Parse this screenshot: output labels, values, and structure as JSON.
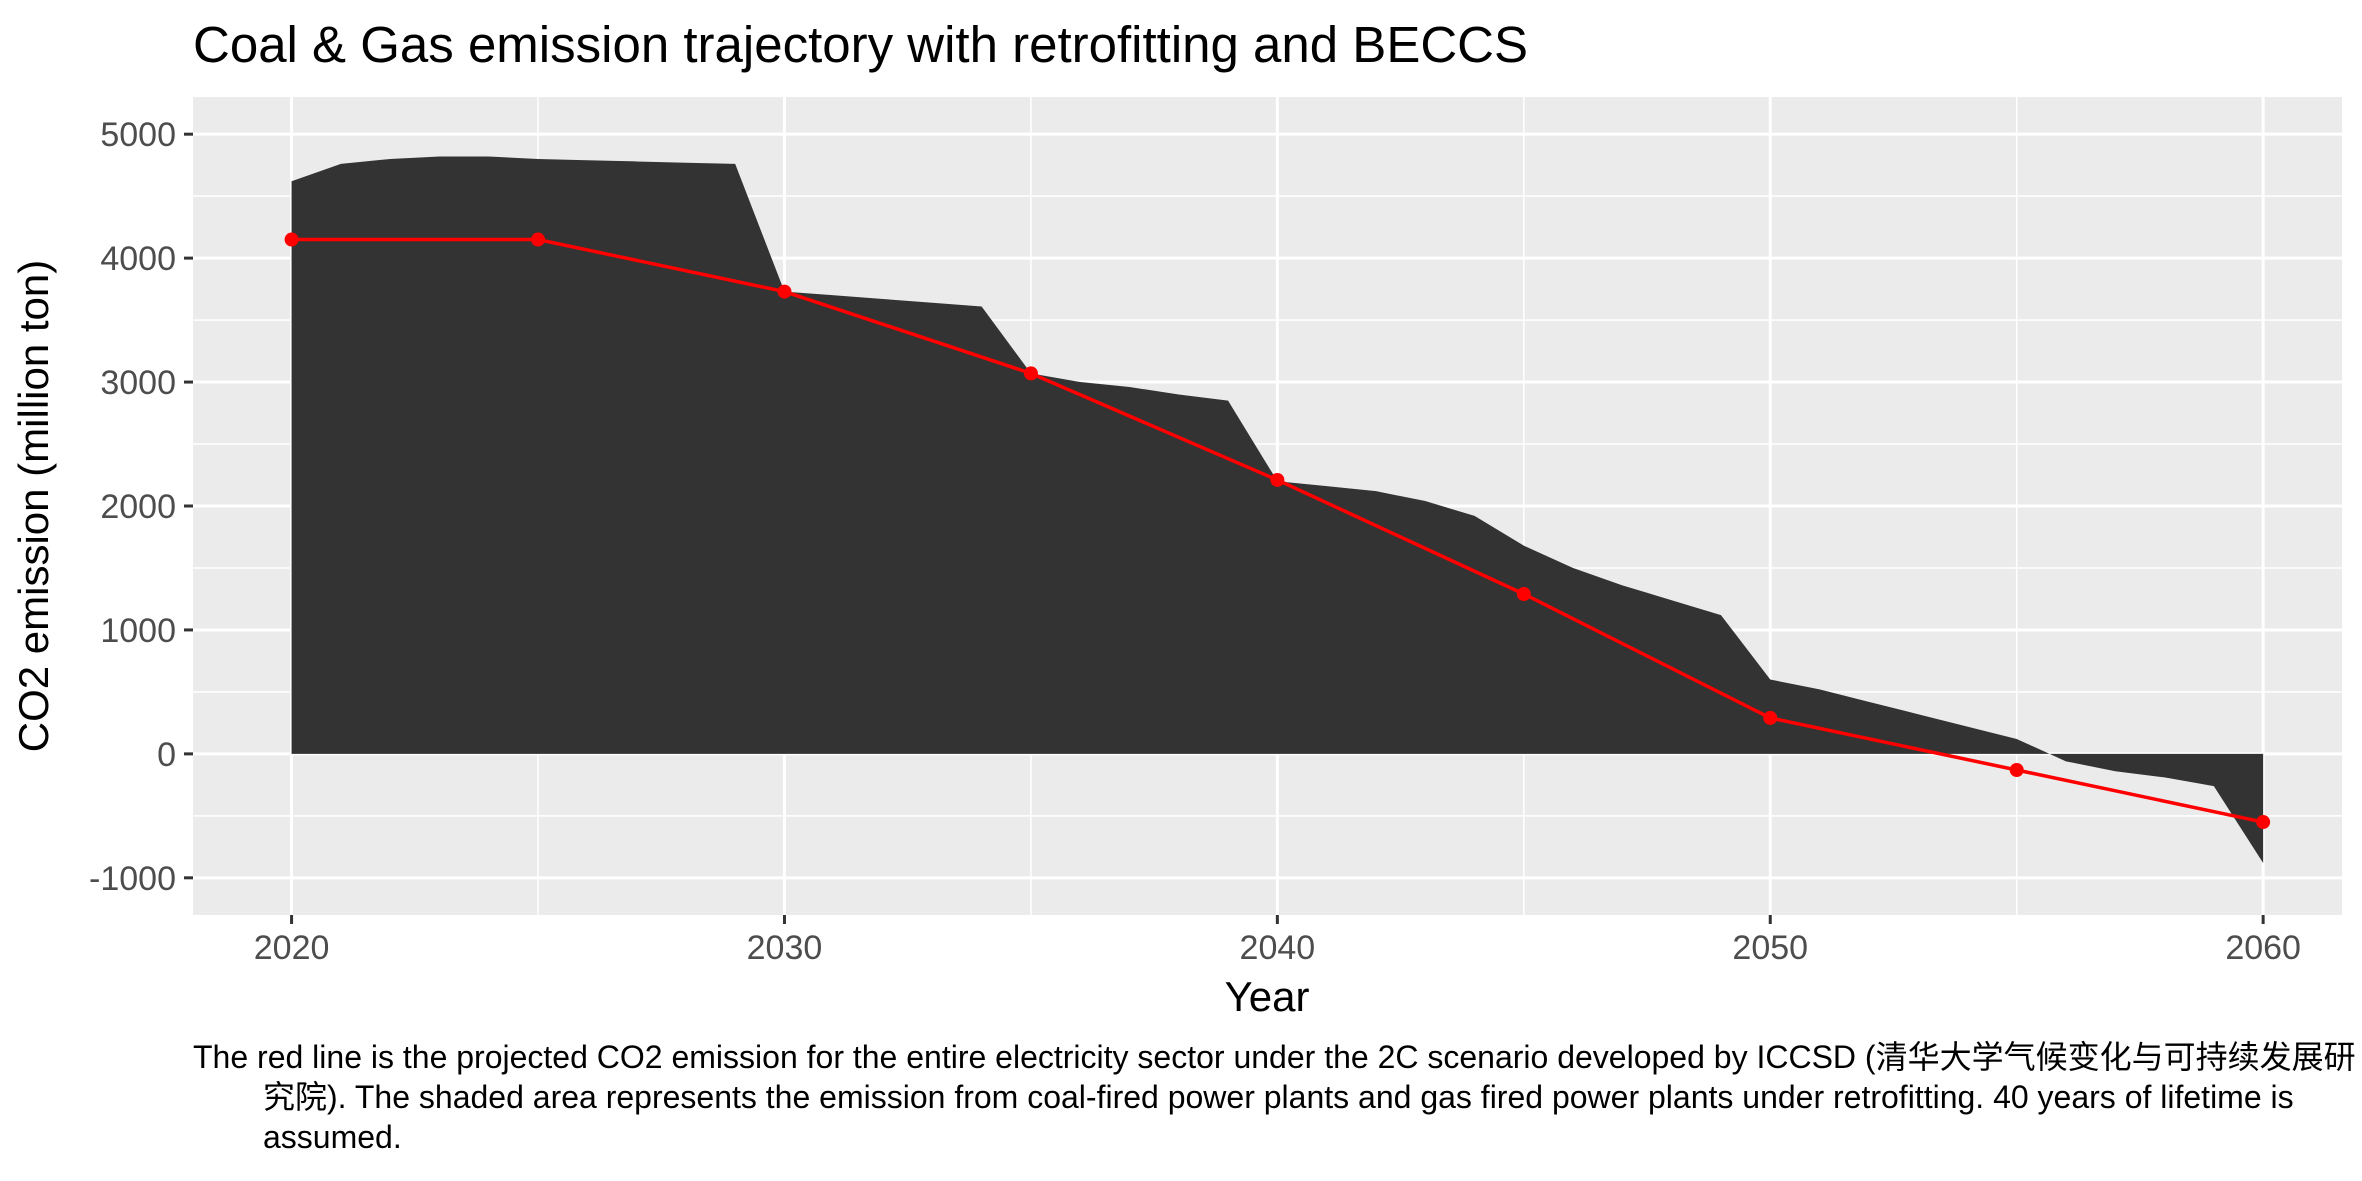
{
  "chart_data": {
    "type": "area",
    "title": "Coal & Gas emission trajectory with retrofitting and BECCS",
    "xlabel": "Year",
    "ylabel": "CO2 emission (million ton)",
    "xlim": [
      2018,
      2061.6
    ],
    "ylim": [
      -1300,
      5300
    ],
    "x_ticks": [
      2020,
      2030,
      2040,
      2050,
      2060
    ],
    "y_ticks": [
      -1000,
      0,
      1000,
      2000,
      3000,
      4000,
      5000
    ],
    "grid": true,
    "legend": "none",
    "colors": {
      "panel": "#ebebeb",
      "grid": "#ffffff",
      "area": "#333333",
      "line": "#ff0000",
      "tick": "#4d4d4d"
    },
    "series": [
      {
        "kind": "area",
        "x": [
          2020,
          2021,
          2022,
          2023,
          2024,
          2025,
          2026,
          2027,
          2028,
          2029,
          2030,
          2031,
          2032,
          2033,
          2034,
          2035,
          2036,
          2037,
          2038,
          2039,
          2040,
          2041,
          2042,
          2043,
          2044,
          2045,
          2046,
          2047,
          2048,
          2049,
          2050,
          2051,
          2052,
          2053,
          2054,
          2055,
          2056,
          2057,
          2058,
          2059,
          2060
        ],
        "values": [
          4620,
          4760,
          4800,
          4820,
          4820,
          4800,
          4790,
          4780,
          4770,
          4760,
          3730,
          3700,
          3670,
          3640,
          3610,
          3070,
          3000,
          2960,
          2900,
          2850,
          2200,
          2160,
          2120,
          2040,
          1920,
          1680,
          1500,
          1360,
          1240,
          1120,
          600,
          520,
          420,
          320,
          220,
          120,
          -60,
          -140,
          -190,
          -260,
          -880
        ]
      },
      {
        "kind": "line",
        "x": [
          2020,
          2025,
          2030,
          2035,
          2040,
          2045,
          2050,
          2055,
          2060
        ],
        "values": [
          4150,
          4150,
          3730,
          3070,
          2210,
          1290,
          290,
          -130,
          -550
        ]
      }
    ],
    "caption": "The red line is the projected CO2 emission for the entire electricity sector under the 2C scenario developed by ICCSD (清华大学气候变化与可持续发展研究院). The shaded area represents the emission from coal-fired power plants and gas fired power plants under retrofitting. 40 years of lifetime is assumed."
  }
}
